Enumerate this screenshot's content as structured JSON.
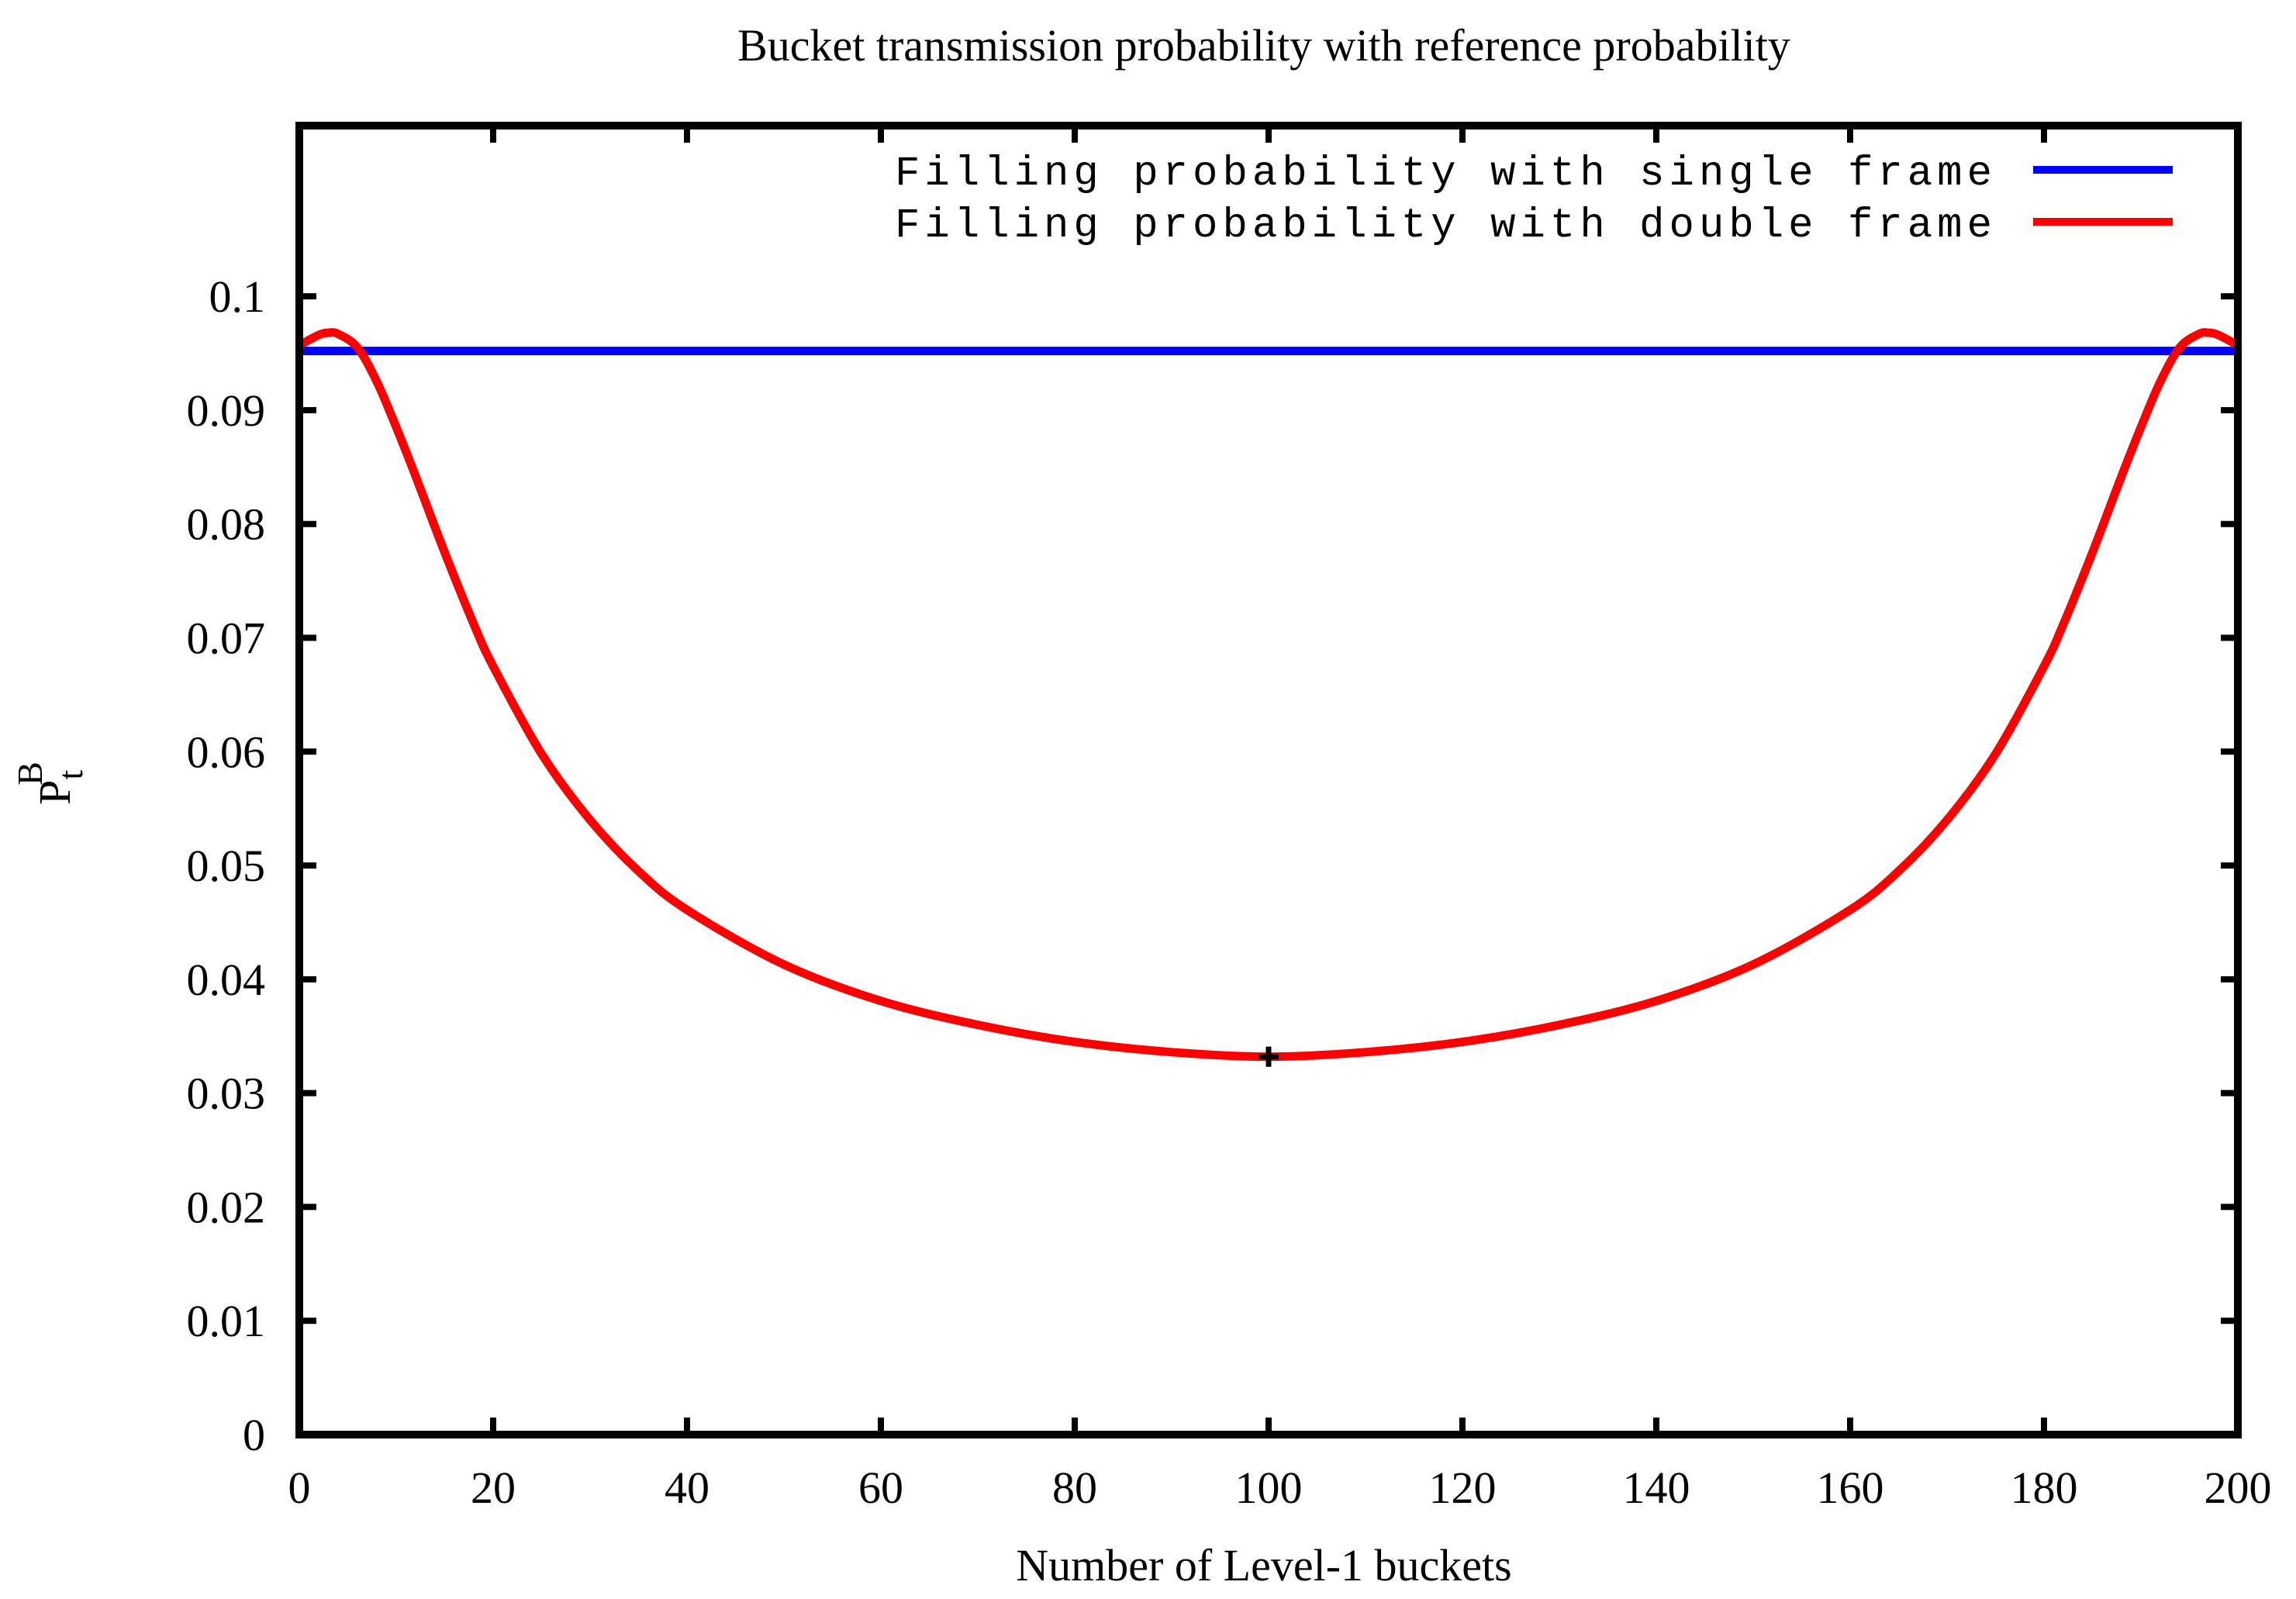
{
  "chart_data": {
    "type": "line",
    "title": "Bucket transmission probability with reference probability",
    "xlabel": "Number of Level-1 buckets",
    "ylabel": {
      "base": "P",
      "sub": "t",
      "sup": "B"
    },
    "xlim": [
      0,
      200
    ],
    "ylim": [
      0,
      0.115
    ],
    "xticks": [
      0,
      20,
      40,
      60,
      80,
      100,
      120,
      140,
      160,
      180,
      200
    ],
    "xtick_labels": [
      "0",
      "20",
      "40",
      "60",
      "80",
      "100",
      "120",
      "140",
      "160",
      "180",
      "200"
    ],
    "yticks": [
      0,
      0.01,
      0.02,
      0.03,
      0.04,
      0.05,
      0.06,
      0.07,
      0.08,
      0.09,
      0.1
    ],
    "ytick_labels": [
      "0",
      "0.01",
      "0.02",
      "0.03",
      "0.04",
      "0.05",
      "0.06",
      "0.07",
      "0.08",
      "0.09",
      "0.1"
    ],
    "grid": false,
    "legend_position": "top-right",
    "series": [
      {
        "name": "Filling probability with single frame",
        "color": "#0000ff",
        "x": [
          0,
          200
        ],
        "y": [
          0.0952,
          0.0952
        ]
      },
      {
        "name": "Filling probability with double frame",
        "color": "#ff0000",
        "x": [
          0,
          2,
          3,
          4,
          6,
          8,
          10,
          12,
          15,
          18,
          20,
          25,
          30,
          35,
          40,
          50,
          60,
          70,
          80,
          90,
          100,
          110,
          120,
          130,
          140,
          150,
          160,
          165,
          170,
          175,
          180,
          182,
          185,
          188,
          190,
          192,
          194,
          196,
          197,
          198,
          200
        ],
        "y": [
          0.0957,
          0.0966,
          0.0968,
          0.0967,
          0.0955,
          0.0925,
          0.0885,
          0.0842,
          0.0775,
          0.0712,
          0.0675,
          0.0598,
          0.054,
          0.0495,
          0.0461,
          0.0413,
          0.0381,
          0.036,
          0.0345,
          0.0336,
          0.0332,
          0.0336,
          0.0345,
          0.036,
          0.0381,
          0.0413,
          0.0461,
          0.0495,
          0.054,
          0.0598,
          0.0675,
          0.0712,
          0.0775,
          0.0842,
          0.0885,
          0.0925,
          0.0955,
          0.0967,
          0.0968,
          0.0966,
          0.0957
        ]
      }
    ],
    "markers": [
      {
        "x": 100,
        "y": 0.0332,
        "symbol": "+",
        "color": "#000000"
      }
    ]
  }
}
